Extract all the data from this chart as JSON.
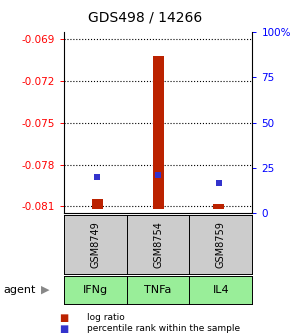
{
  "title": "GDS498 / 14266",
  "samples": [
    "GSM8749",
    "GSM8754",
    "GSM8759"
  ],
  "agents": [
    "IFNg",
    "TNFa",
    "IL4"
  ],
  "log_ratios": [
    -0.0805,
    -0.07025,
    -0.08085
  ],
  "baseline": -0.0812,
  "percentile_ranks": [
    20,
    21,
    17
  ],
  "ylim_left": [
    -0.0815,
    -0.0685
  ],
  "yticks_left": [
    -0.081,
    -0.078,
    -0.075,
    -0.072,
    -0.069
  ],
  "ytick_labels_left": [
    "-0.081",
    "-0.078",
    "-0.075",
    "-0.072",
    "-0.069"
  ],
  "ylim_right": [
    0,
    100
  ],
  "yticks_right": [
    0,
    25,
    50,
    75,
    100
  ],
  "ytick_labels_right": [
    "0",
    "25",
    "50",
    "75",
    "100%"
  ],
  "bar_color": "#bb2200",
  "square_color": "#3333cc",
  "agent_color": "#99ee99",
  "gsm_bg_color": "#cccccc",
  "title_fontsize": 10,
  "legend_bar_label": "log ratio",
  "legend_sq_label": "percentile rank within the sample",
  "agent_label": "agent"
}
